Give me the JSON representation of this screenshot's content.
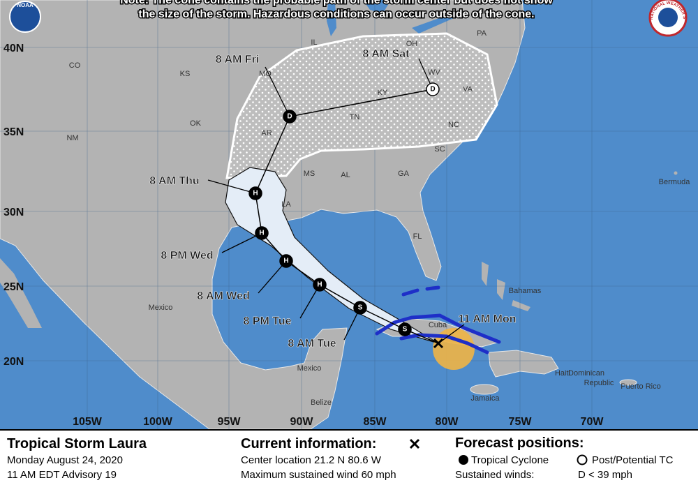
{
  "note": [
    "Note: The cone contains the probable path of the storm center but does not show",
    "the size of the storm. Hazardous conditions can occur outside of the cone."
  ],
  "logos": {
    "noaa": "NOAA",
    "nws": "NATIONAL WEATHER SERVICE"
  },
  "map": {
    "lat_labels": [
      "40N",
      "35N",
      "30N",
      "25N",
      "20N"
    ],
    "lon_labels": [
      "105W",
      "100W",
      "95W",
      "90W",
      "85W",
      "80W",
      "75W",
      "70W"
    ],
    "places": [
      "CO",
      "KS",
      "MO",
      "IL",
      "OH",
      "PA",
      "WV",
      "VA",
      "KY",
      "TN",
      "NC",
      "SC",
      "GA",
      "AL",
      "MS",
      "AR",
      "OK",
      "LA",
      "FL",
      "NM",
      "Mexico",
      "Mexico",
      "Bermuda",
      "Bahamas",
      "Cuba",
      "Haiti",
      "Dominican",
      "Republic",
      "Puerto Rico",
      "Jamaica",
      "Belize"
    ],
    "forecast_labels": [
      "8 AM Sat",
      "8 AM Fri",
      "8 AM Thu",
      "8 PM Wed",
      "8 AM Wed",
      "8 PM Tue",
      "8 AM Tue",
      "11 AM Mon"
    ],
    "markers": [
      "D",
      "D",
      "H",
      "H",
      "H",
      "H",
      "S",
      "S"
    ]
  },
  "footer": {
    "storm": "Tropical Storm Laura",
    "date": "Monday August 24, 2020",
    "advisory": "11 AM EDT Advisory 19",
    "current_title": "Current information:",
    "center": "Center location 21.2 N 80.6 W",
    "wind": "Maximum sustained wind 60 mph",
    "forecast_title": "Forecast positions:",
    "tropical": "Tropical Cyclone",
    "post": "Post/Potential TC",
    "sustained": "Sustained winds:",
    "d_def": "D < 39 mph"
  }
}
